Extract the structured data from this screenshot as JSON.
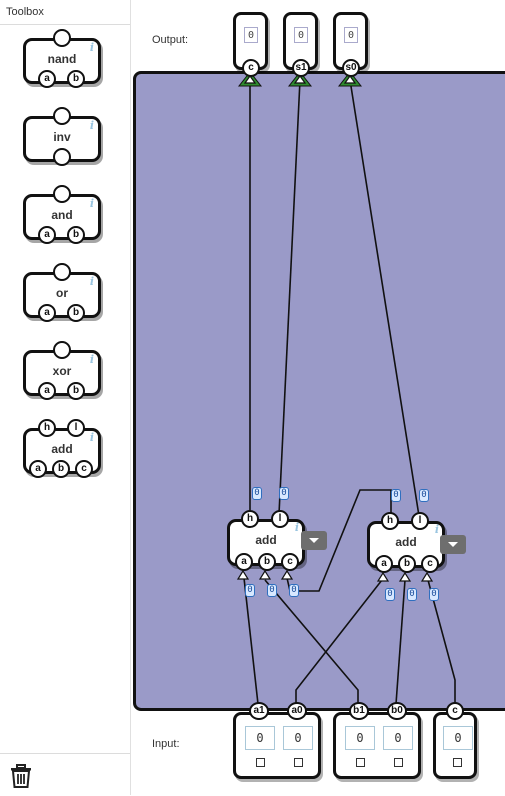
{
  "toolbox": {
    "title": "Toolbox",
    "gates": [
      {
        "name": "nand",
        "inputs": [
          "a",
          "b"
        ],
        "outputs": [
          ""
        ]
      },
      {
        "name": "inv",
        "inputs": [
          ""
        ],
        "outputs": [
          ""
        ]
      },
      {
        "name": "and",
        "inputs": [
          "a",
          "b"
        ],
        "outputs": [
          ""
        ]
      },
      {
        "name": "or",
        "inputs": [
          "a",
          "b"
        ],
        "outputs": [
          ""
        ]
      },
      {
        "name": "xor",
        "inputs": [
          "a",
          "b"
        ],
        "outputs": [
          ""
        ]
      },
      {
        "name": "add",
        "inputs": [
          "a",
          "b",
          "c"
        ],
        "outputs": [
          "h",
          "l"
        ]
      }
    ],
    "info_glyph": "i",
    "trash_icon": "trash-icon"
  },
  "canvas": {
    "output_label": "Output:",
    "input_label": "Input:",
    "outputs": [
      {
        "pin": "c",
        "value": "0"
      },
      {
        "pin": "s1",
        "value": "0"
      },
      {
        "pin": "s0",
        "value": "0"
      }
    ],
    "inputs": [
      {
        "group": "a",
        "pins": [
          {
            "pin": "a1",
            "value": "0"
          },
          {
            "pin": "a0",
            "value": "0"
          }
        ]
      },
      {
        "group": "b",
        "pins": [
          {
            "pin": "b1",
            "value": "0"
          },
          {
            "pin": "b0",
            "value": "0"
          }
        ]
      },
      {
        "group": "c",
        "pins": [
          {
            "pin": "c",
            "value": "0"
          }
        ]
      }
    ],
    "gates": [
      {
        "name": "add",
        "inputs": [
          "a",
          "b",
          "c"
        ],
        "outputs": [
          "h",
          "l"
        ],
        "out_values": [
          "0",
          "0"
        ],
        "in_values": [
          "0",
          "0",
          "0"
        ]
      },
      {
        "name": "add",
        "inputs": [
          "a",
          "b",
          "c"
        ],
        "outputs": [
          "h",
          "l"
        ],
        "out_values": [
          "0",
          "0"
        ],
        "in_values": [
          "0",
          "0",
          "0"
        ]
      }
    ],
    "colors": {
      "board": "#9a9ac8",
      "output_marker": "#2e8b2e"
    }
  }
}
